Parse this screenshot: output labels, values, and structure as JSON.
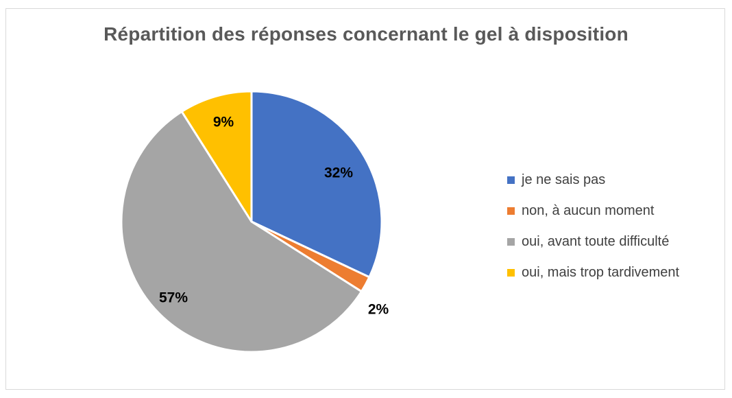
{
  "chart_data": {
    "type": "pie",
    "title": "Répartition des réponses concernant le gel à disposition",
    "categories": [
      "je ne sais pas",
      "non, à aucun moment",
      "oui, avant toute difficulté",
      "oui, mais trop tardivement"
    ],
    "values": [
      32,
      2,
      57,
      9
    ],
    "data_labels": [
      "32%",
      "2%",
      "57%",
      "9%"
    ],
    "colors": [
      "#4472C4",
      "#ED7D31",
      "#A5A5A5",
      "#FFC000"
    ],
    "legend_position": "right"
  }
}
